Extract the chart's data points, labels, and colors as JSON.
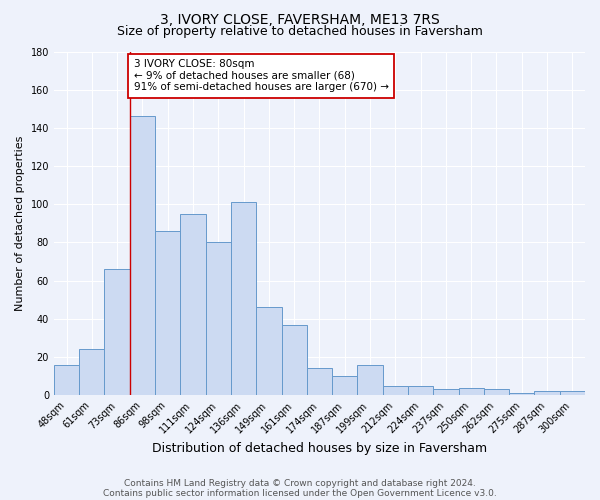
{
  "title": "3, IVORY CLOSE, FAVERSHAM, ME13 7RS",
  "subtitle": "Size of property relative to detached houses in Faversham",
  "xlabel": "Distribution of detached houses by size in Faversham",
  "ylabel": "Number of detached properties",
  "categories": [
    "48sqm",
    "61sqm",
    "73sqm",
    "86sqm",
    "98sqm",
    "111sqm",
    "124sqm",
    "136sqm",
    "149sqm",
    "161sqm",
    "174sqm",
    "187sqm",
    "199sqm",
    "212sqm",
    "224sqm",
    "237sqm",
    "250sqm",
    "262sqm",
    "275sqm",
    "287sqm",
    "300sqm"
  ],
  "values": [
    16,
    24,
    66,
    146,
    86,
    95,
    80,
    101,
    46,
    37,
    14,
    10,
    16,
    5,
    5,
    3,
    4,
    3,
    1,
    2,
    2
  ],
  "bar_color": "#ccdaf2",
  "bar_edge_color": "#6699cc",
  "red_line_x": 2.5,
  "annotation_text": "3 IVORY CLOSE: 80sqm\n← 9% of detached houses are smaller (68)\n91% of semi-detached houses are larger (670) →",
  "annotation_box_facecolor": "#ffffff",
  "annotation_box_edgecolor": "#cc0000",
  "ylim": [
    0,
    180
  ],
  "yticks": [
    0,
    20,
    40,
    60,
    80,
    100,
    120,
    140,
    160,
    180
  ],
  "footnote1": "Contains HM Land Registry data © Crown copyright and database right 2024.",
  "footnote2": "Contains public sector information licensed under the Open Government Licence v3.0.",
  "background_color": "#eef2fb",
  "grid_color": "#ffffff",
  "title_fontsize": 10,
  "subtitle_fontsize": 9,
  "xlabel_fontsize": 9,
  "ylabel_fontsize": 8,
  "tick_fontsize": 7,
  "annotation_fontsize": 7.5,
  "footnote_fontsize": 6.5
}
